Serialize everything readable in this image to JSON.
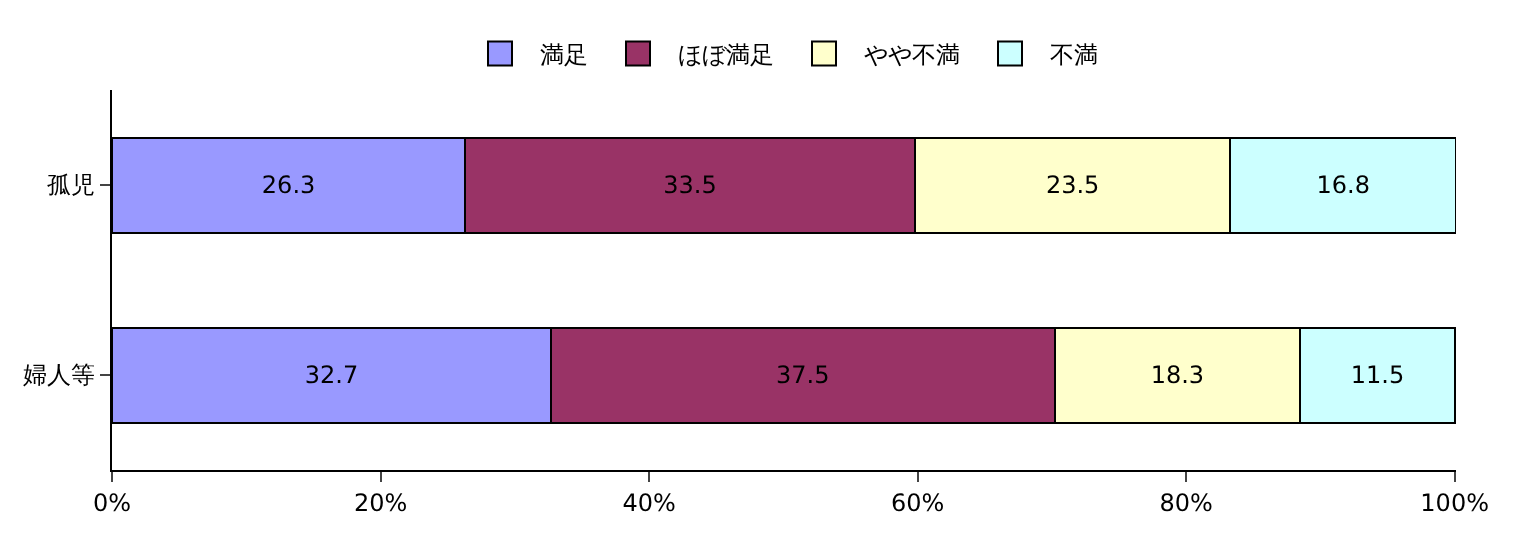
{
  "chart_data": {
    "type": "bar",
    "orientation": "horizontal",
    "stacked": true,
    "data_labels": true,
    "categories": [
      "孤児",
      "婦人等"
    ],
    "series": [
      {
        "name": "満足",
        "color": "#9999ff",
        "values": [
          26.3,
          32.7
        ]
      },
      {
        "name": "ほぼ満足",
        "color": "#993366",
        "values": [
          33.5,
          37.5
        ]
      },
      {
        "name": "やや不満",
        "color": "#ffffcc",
        "values": [
          23.5,
          18.3
        ]
      },
      {
        "name": "不満",
        "color": "#ccffff",
        "values": [
          16.8,
          11.5
        ]
      }
    ],
    "xlim": [
      0,
      100.1
    ],
    "xticks": [
      {
        "value": 0,
        "label": "0%"
      },
      {
        "value": 20,
        "label": "20%"
      },
      {
        "value": 40,
        "label": "40%"
      },
      {
        "value": 60,
        "label": "60%"
      },
      {
        "value": 80,
        "label": "80%"
      },
      {
        "value": 100,
        "label": "100%"
      }
    ],
    "legend": "top",
    "grid": false
  }
}
